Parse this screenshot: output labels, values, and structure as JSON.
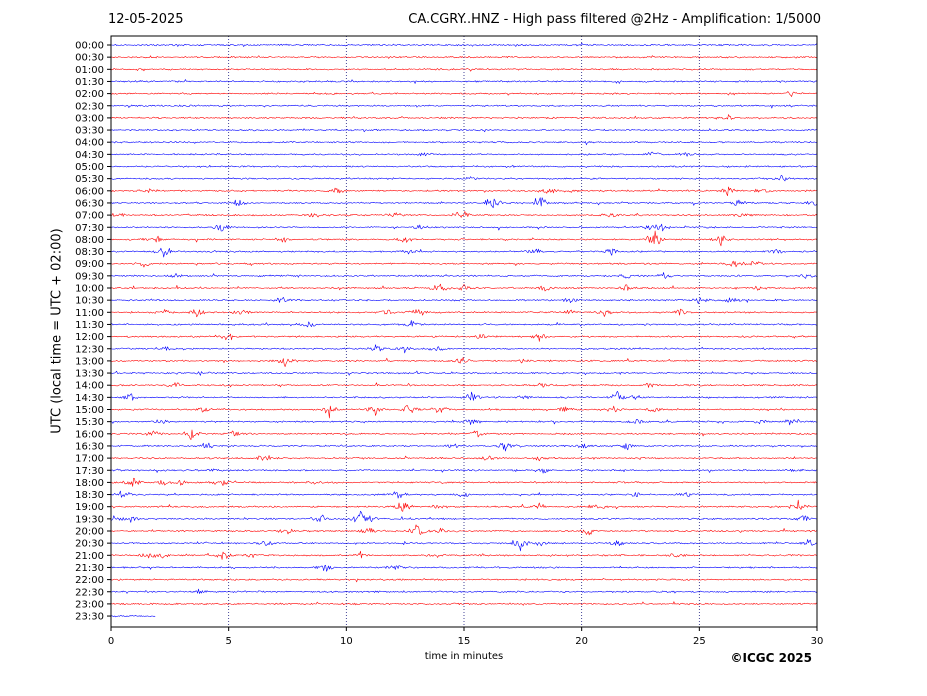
{
  "header": {
    "date": "12-05-2025",
    "title": "CA.CGRY..HNZ - High pass filtered @2Hz - Amplification: 1/5000"
  },
  "footer": {
    "copyright": "©ICGC 2025"
  },
  "chart_data": {
    "type": "line",
    "subtype": "helicorder",
    "title": "CA.CGRY..HNZ - High pass filtered @2Hz - Amplification: 1/5000",
    "xlabel": "time in minutes",
    "ylabel": "UTC (local time = UTC + 02:00)",
    "xlim": [
      0,
      30
    ],
    "x_ticks": [
      0,
      5,
      10,
      15,
      20,
      25,
      30
    ],
    "vertical_gridlines_at": [
      5,
      10,
      15,
      20,
      25
    ],
    "row_colors": [
      "#0000ff",
      "#ff0000"
    ],
    "rows": [
      {
        "label": "00:00",
        "color": "#0000ff",
        "end_minute": 30,
        "events": []
      },
      {
        "label": "00:30",
        "color": "#ff0000",
        "end_minute": 30,
        "events": []
      },
      {
        "label": "01:00",
        "color": "#ff0000",
        "end_minute": 30,
        "events": []
      },
      {
        "label": "01:30",
        "color": "#0000ff",
        "end_minute": 30,
        "events": []
      },
      {
        "label": "02:00",
        "color": "#ff0000",
        "end_minute": 30,
        "events": [
          [
            28.9,
            0.3
          ]
        ]
      },
      {
        "label": "02:30",
        "color": "#0000ff",
        "end_minute": 30,
        "events": []
      },
      {
        "label": "03:00",
        "color": "#ff0000",
        "end_minute": 30,
        "events": [
          [
            26.2,
            0.4
          ]
        ]
      },
      {
        "label": "03:30",
        "color": "#0000ff",
        "end_minute": 30,
        "events": []
      },
      {
        "label": "04:00",
        "color": "#0000ff",
        "end_minute": 30,
        "events": []
      },
      {
        "label": "04:30",
        "color": "#0000ff",
        "end_minute": 30,
        "events": [
          [
            13.3,
            0.4
          ],
          [
            24.5,
            0.4
          ],
          [
            23.0,
            0.3
          ]
        ]
      },
      {
        "label": "05:00",
        "color": "#0000ff",
        "end_minute": 30,
        "events": []
      },
      {
        "label": "05:30",
        "color": "#0000ff",
        "end_minute": 30,
        "events": [
          [
            15.3,
            0.3
          ],
          [
            28.6,
            0.6
          ]
        ]
      },
      {
        "label": "06:00",
        "color": "#ff0000",
        "end_minute": 30,
        "events": [
          [
            1.6,
            0.3
          ],
          [
            9.6,
            0.4
          ],
          [
            18.6,
            0.6
          ],
          [
            19.7,
            0.3
          ],
          [
            26.2,
            0.6
          ],
          [
            27.7,
            0.6
          ]
        ]
      },
      {
        "label": "06:30",
        "color": "#0000ff",
        "end_minute": 30,
        "events": [
          [
            5.4,
            0.5
          ],
          [
            16.2,
            0.9
          ],
          [
            18.2,
            1.2
          ],
          [
            26.6,
            0.5
          ],
          [
            29.9,
            0.6
          ]
        ]
      },
      {
        "label": "07:00",
        "color": "#ff0000",
        "end_minute": 30,
        "events": [
          [
            0.3,
            0.5
          ],
          [
            8.6,
            0.6
          ],
          [
            14.9,
            0.9
          ],
          [
            12.1,
            0.4
          ],
          [
            21.2,
            0.4
          ],
          [
            26.9,
            0.4
          ]
        ]
      },
      {
        "label": "07:30",
        "color": "#0000ff",
        "end_minute": 30,
        "events": [
          [
            4.7,
            0.6
          ],
          [
            13.1,
            0.4
          ],
          [
            23.4,
            0.5
          ],
          [
            22.9,
            0.4
          ]
        ]
      },
      {
        "label": "08:00",
        "color": "#ff0000",
        "end_minute": 30,
        "events": [
          [
            1.8,
            0.6
          ],
          [
            7.3,
            0.4
          ],
          [
            12.5,
            0.5
          ],
          [
            23.1,
            1.4
          ],
          [
            25.9,
            0.8
          ]
        ]
      },
      {
        "label": "08:30",
        "color": "#0000ff",
        "end_minute": 30,
        "events": [
          [
            2.2,
            1.3
          ],
          [
            12.7,
            0.4
          ],
          [
            18.0,
            0.5
          ],
          [
            21.3,
            0.6
          ],
          [
            28.2,
            0.4
          ]
        ]
      },
      {
        "label": "09:00",
        "color": "#ff0000",
        "end_minute": 30,
        "events": [
          [
            1.4,
            0.4
          ],
          [
            26.5,
            0.6
          ],
          [
            27.3,
            0.4
          ]
        ]
      },
      {
        "label": "09:30",
        "color": "#0000ff",
        "end_minute": 30,
        "events": [
          [
            2.8,
            0.3
          ],
          [
            21.9,
            0.4
          ],
          [
            23.5,
            0.4
          ],
          [
            29.5,
            0.3
          ]
        ]
      },
      {
        "label": "10:00",
        "color": "#ff0000",
        "end_minute": 30,
        "events": [
          [
            14.0,
            1.0
          ],
          [
            15.0,
            0.4
          ],
          [
            18.5,
            0.5
          ],
          [
            21.9,
            0.5
          ],
          [
            27.5,
            0.4
          ]
        ]
      },
      {
        "label": "10:30",
        "color": "#0000ff",
        "end_minute": 30,
        "events": [
          [
            7.3,
            0.5
          ],
          [
            19.5,
            0.5
          ],
          [
            25.0,
            0.7
          ],
          [
            26.4,
            0.7
          ]
        ]
      },
      {
        "label": "11:00",
        "color": "#ff0000",
        "end_minute": 30,
        "events": [
          [
            2.2,
            0.5
          ],
          [
            3.7,
            0.7
          ],
          [
            5.6,
            0.5
          ],
          [
            11.7,
            0.5
          ],
          [
            13.0,
            0.6
          ],
          [
            19.5,
            0.4
          ],
          [
            21.0,
            0.6
          ],
          [
            24.2,
            0.5
          ]
        ]
      },
      {
        "label": "11:30",
        "color": "#0000ff",
        "end_minute": 30,
        "events": [
          [
            8.4,
            0.4
          ],
          [
            12.8,
            0.6
          ]
        ]
      },
      {
        "label": "12:00",
        "color": "#ff0000",
        "end_minute": 30,
        "events": [
          [
            5.0,
            0.6
          ],
          [
            15.7,
            0.5
          ],
          [
            18.2,
            0.5
          ]
        ]
      },
      {
        "label": "12:30",
        "color": "#0000ff",
        "end_minute": 30,
        "events": [
          [
            2.4,
            0.4
          ],
          [
            11.3,
            0.7
          ],
          [
            12.5,
            0.5
          ],
          [
            13.8,
            0.4
          ]
        ]
      },
      {
        "label": "13:00",
        "color": "#ff0000",
        "end_minute": 30,
        "events": [
          [
            7.4,
            0.7
          ],
          [
            14.9,
            0.6
          ],
          [
            17.5,
            0.3
          ]
        ]
      },
      {
        "label": "13:30",
        "color": "#0000ff",
        "end_minute": 30,
        "events": [
          [
            3.8,
            0.3
          ]
        ]
      },
      {
        "label": "14:00",
        "color": "#ff0000",
        "end_minute": 30,
        "events": [
          [
            2.7,
            0.6
          ],
          [
            22.9,
            0.3
          ],
          [
            18.3,
            0.3
          ]
        ]
      },
      {
        "label": "14:30",
        "color": "#0000ff",
        "end_minute": 30,
        "events": [
          [
            0.8,
            0.6
          ],
          [
            15.3,
            0.7
          ],
          [
            17.5,
            0.3
          ],
          [
            21.5,
            0.7
          ],
          [
            22.3,
            0.4
          ]
        ]
      },
      {
        "label": "15:00",
        "color": "#ff0000",
        "end_minute": 30,
        "events": [
          [
            3.9,
            0.4
          ],
          [
            9.3,
            1.1
          ],
          [
            11.2,
            0.9
          ],
          [
            12.7,
            0.8
          ],
          [
            14.0,
            0.6
          ],
          [
            19.3,
            0.6
          ],
          [
            21.3,
            0.5
          ],
          [
            23.1,
            0.6
          ]
        ]
      },
      {
        "label": "15:30",
        "color": "#0000ff",
        "end_minute": 30,
        "events": [
          [
            2.1,
            0.4
          ],
          [
            15.3,
            0.5
          ],
          [
            22.4,
            0.4
          ],
          [
            27.6,
            0.4
          ],
          [
            28.9,
            0.5
          ]
        ]
      },
      {
        "label": "16:00",
        "color": "#ff0000",
        "end_minute": 30,
        "events": [
          [
            1.8,
            0.5
          ],
          [
            3.4,
            0.9
          ],
          [
            5.2,
            0.4
          ],
          [
            15.5,
            0.5
          ]
        ]
      },
      {
        "label": "16:30",
        "color": "#0000ff",
        "end_minute": 30,
        "events": [
          [
            4.1,
            0.5
          ],
          [
            14.5,
            0.4
          ],
          [
            16.8,
            0.8
          ],
          [
            21.9,
            0.5
          ],
          [
            20.1,
            0.4
          ]
        ]
      },
      {
        "label": "17:00",
        "color": "#ff0000",
        "end_minute": 30,
        "events": [
          [
            6.5,
            0.6
          ],
          [
            16.0,
            0.3
          ],
          [
            18.2,
            0.3
          ]
        ]
      },
      {
        "label": "17:30",
        "color": "#0000ff",
        "end_minute": 30,
        "events": [
          [
            4.3,
            0.3
          ],
          [
            18.3,
            0.6
          ],
          [
            29.0,
            0.3
          ]
        ]
      },
      {
        "label": "18:00",
        "color": "#ff0000",
        "end_minute": 30,
        "events": [
          [
            0.9,
            1.0
          ],
          [
            2.2,
            0.4
          ],
          [
            3.0,
            0.5
          ],
          [
            4.7,
            0.6
          ],
          [
            8.7,
            0.3
          ]
        ]
      },
      {
        "label": "18:30",
        "color": "#0000ff",
        "end_minute": 30,
        "events": [
          [
            0.5,
            0.6
          ],
          [
            12.2,
            0.8
          ],
          [
            15.0,
            0.5
          ],
          [
            22.3,
            0.4
          ],
          [
            24.4,
            0.4
          ]
        ]
      },
      {
        "label": "19:00",
        "color": "#ff0000",
        "end_minute": 30,
        "events": [
          [
            12.4,
            1.0
          ],
          [
            13.9,
            0.4
          ],
          [
            18.2,
            0.4
          ],
          [
            20.7,
            0.7
          ],
          [
            29.2,
            0.8
          ]
        ]
      },
      {
        "label": "19:30",
        "color": "#0000ff",
        "end_minute": 30,
        "events": [
          [
            0.1,
            0.4
          ],
          [
            0.8,
            0.6
          ],
          [
            8.9,
            0.8
          ],
          [
            10.6,
            1.4
          ],
          [
            11.0,
            0.5
          ],
          [
            29.4,
            0.6
          ]
        ]
      },
      {
        "label": "20:00",
        "color": "#ff0000",
        "end_minute": 30,
        "events": [
          [
            7.4,
            0.5
          ],
          [
            10.9,
            0.7
          ],
          [
            13.0,
            1.5
          ],
          [
            14.0,
            0.4
          ],
          [
            20.3,
            0.6
          ]
        ]
      },
      {
        "label": "20:30",
        "color": "#0000ff",
        "end_minute": 30,
        "events": [
          [
            6.6,
            0.7
          ],
          [
            17.4,
            1.1
          ],
          [
            18.2,
            0.5
          ],
          [
            21.5,
            0.4
          ],
          [
            29.7,
            0.6
          ]
        ]
      },
      {
        "label": "21:00",
        "color": "#ff0000",
        "end_minute": 30,
        "events": [
          [
            1.5,
            0.5
          ],
          [
            2.1,
            0.7
          ],
          [
            4.8,
            0.7
          ],
          [
            6.0,
            0.3
          ],
          [
            10.6,
            0.5
          ],
          [
            13.8,
            0.4
          ],
          [
            24.0,
            0.4
          ]
        ]
      },
      {
        "label": "21:30",
        "color": "#0000ff",
        "end_minute": 30,
        "events": [
          [
            9.1,
            0.6
          ],
          [
            12.1,
            0.4
          ]
        ]
      },
      {
        "label": "22:00",
        "color": "#ff0000",
        "end_minute": 30,
        "events": []
      },
      {
        "label": "22:30",
        "color": "#0000ff",
        "end_minute": 30,
        "events": [
          [
            3.8,
            0.3
          ]
        ]
      },
      {
        "label": "23:00",
        "color": "#ff0000",
        "end_minute": 30,
        "events": []
      },
      {
        "label": "23:30",
        "color": "#0000ff",
        "end_minute": 1.9,
        "events": []
      }
    ]
  }
}
